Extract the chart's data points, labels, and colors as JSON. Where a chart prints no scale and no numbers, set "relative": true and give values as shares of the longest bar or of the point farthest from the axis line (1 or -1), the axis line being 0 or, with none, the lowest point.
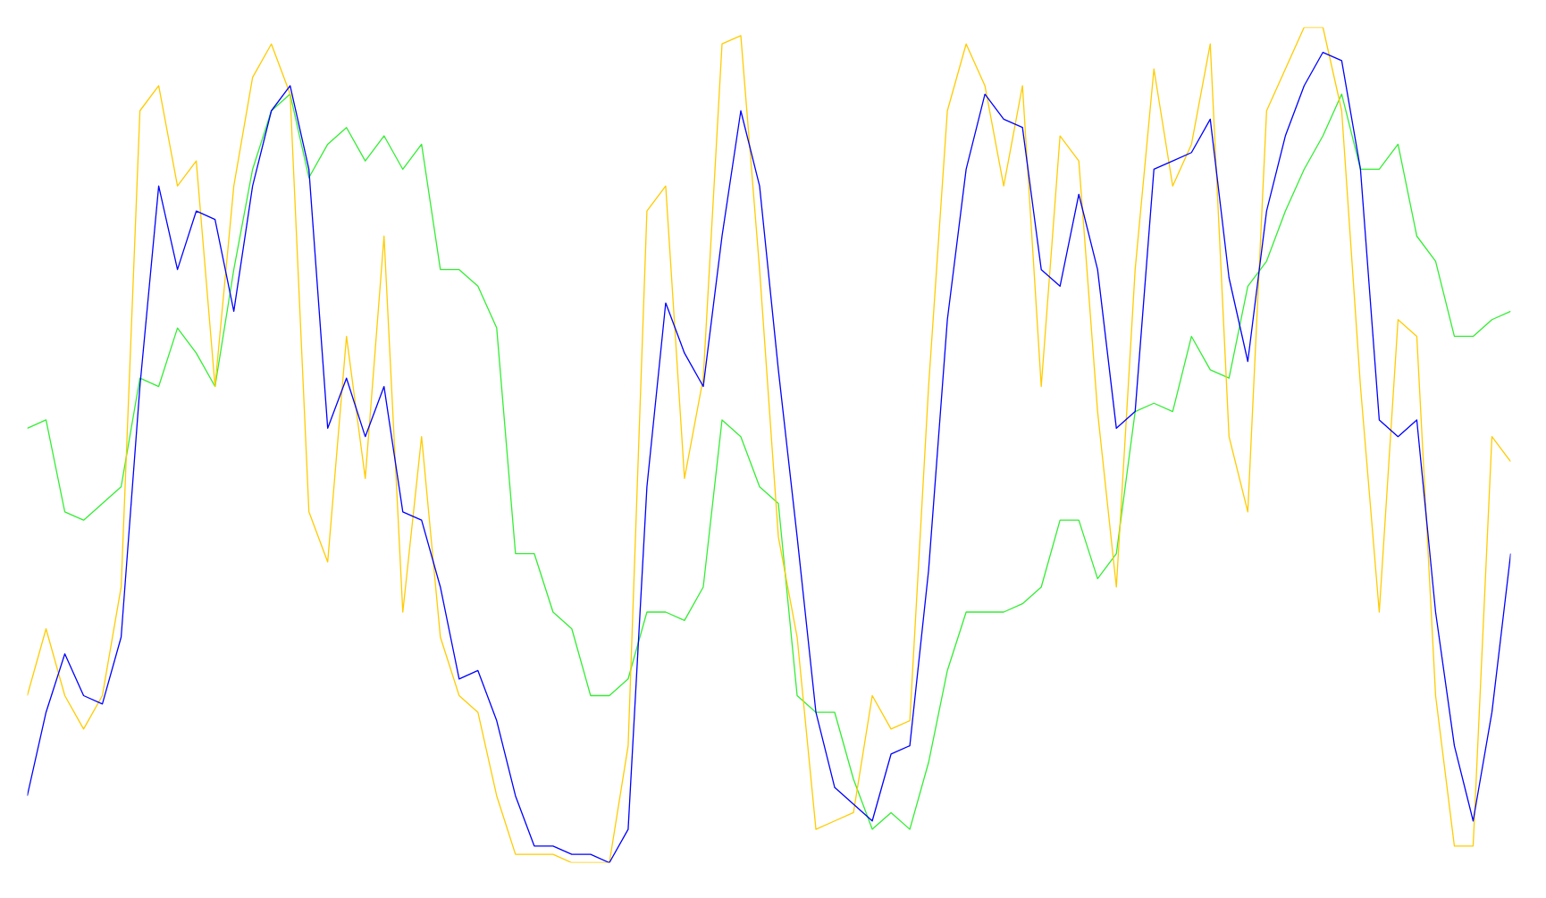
{
  "chart_data": {
    "type": "line",
    "relative": true,
    "categories": [
      null,
      null,
      null,
      null,
      null,
      null,
      null,
      null,
      null,
      null,
      null,
      null,
      null,
      null,
      null,
      null,
      null,
      null,
      null,
      null,
      null,
      null,
      null,
      null,
      null,
      null,
      null,
      null,
      null,
      null,
      null,
      null,
      null,
      null,
      null,
      null,
      null,
      null,
      null,
      null,
      null,
      null,
      null,
      null,
      null,
      null,
      null,
      null,
      null,
      null,
      null,
      null,
      null,
      null,
      null,
      null,
      null,
      null,
      null,
      null,
      null,
      null,
      null,
      null,
      null,
      null,
      null,
      null,
      null,
      null,
      null,
      null,
      null,
      null,
      null,
      null,
      null,
      null,
      null,
      null
    ],
    "series": [
      {
        "color": "#33ee33",
        "values": [
          0.52,
          0.53,
          0.42,
          0.41,
          0.43,
          0.45,
          0.58,
          0.57,
          0.64,
          0.61,
          0.57,
          0.71,
          0.83,
          0.9,
          0.92,
          0.82,
          0.86,
          0.88,
          0.84,
          0.87,
          0.83,
          0.86,
          0.71,
          0.71,
          0.69,
          0.64,
          0.37,
          0.37,
          0.3,
          0.28,
          0.2,
          0.2,
          0.22,
          0.3,
          0.3,
          0.29,
          0.33,
          0.53,
          0.51,
          0.45,
          0.43,
          0.2,
          0.18,
          0.18,
          0.1,
          0.04,
          0.06,
          0.04,
          0.12,
          0.23,
          0.3,
          0.3,
          0.3,
          0.31,
          0.33,
          0.41,
          0.41,
          0.34,
          0.37,
          0.54,
          0.55,
          0.54,
          0.63,
          0.59,
          0.58,
          0.69,
          0.72,
          0.78,
          0.83,
          0.87,
          0.92,
          0.83,
          0.83,
          0.86,
          0.75,
          0.72,
          0.63,
          0.63,
          0.65,
          0.66
        ]
      },
      {
        "color": "#ffcc00",
        "values": [
          0.2,
          0.28,
          0.2,
          0.16,
          0.2,
          0.33,
          0.9,
          0.93,
          0.81,
          0.84,
          0.57,
          0.81,
          0.94,
          0.98,
          0.92,
          0.42,
          0.36,
          0.63,
          0.46,
          0.75,
          0.3,
          0.51,
          0.27,
          0.2,
          0.18,
          0.08,
          0.01,
          0.01,
          0.01,
          0.0,
          0,
          0.0,
          0.14,
          0.78,
          0.81,
          0.46,
          0.58,
          0.98,
          0.99,
          0.71,
          0.39,
          0.27,
          0.04,
          0.05,
          0.06,
          0.2,
          0.16,
          0.17,
          0.57,
          0.9,
          0.98,
          0.93,
          0.81,
          0.93,
          0.57,
          0.87,
          0.84,
          0.54,
          0.33,
          0.71,
          0.95,
          0.81,
          0.86,
          0.98,
          0.51,
          0.42,
          0.9,
          0.95,
          1.0,
          1.0,
          0.9,
          0.57,
          0.3,
          0.65,
          0.63,
          0.2,
          0.02,
          0.02,
          0.51,
          0.48
        ]
      },
      {
        "color": "#0000ff",
        "values": [
          0.08,
          0.18,
          0.25,
          0.2,
          0.19,
          0.27,
          0.57,
          0.81,
          0.71,
          0.78,
          0.77,
          0.66,
          0.81,
          0.9,
          0.93,
          0.83,
          0.52,
          0.58,
          0.51,
          0.57,
          0.42,
          0.41,
          0.33,
          0.22,
          0.23,
          0.17,
          0.08,
          0.02,
          0.02,
          0.01,
          0.01,
          0,
          0.04,
          0.45,
          0.67,
          0.61,
          0.57,
          0.75,
          0.9,
          0.81,
          0.59,
          0.39,
          0.18,
          0.09,
          0.07,
          0.05,
          0.13,
          0.14,
          0.35,
          0.65,
          0.83,
          0.92,
          0.89,
          0.88,
          0.71,
          0.69,
          0.8,
          0.71,
          0.52,
          0.54,
          0.83,
          0.84,
          0.85,
          0.89,
          0.7,
          0.6,
          0.78,
          0.87,
          0.93,
          0.97,
          0.96,
          0.83,
          0.53,
          0.51,
          0.53,
          0.3,
          0.14,
          0.05,
          0.18,
          0.37
        ]
      }
    ]
  }
}
